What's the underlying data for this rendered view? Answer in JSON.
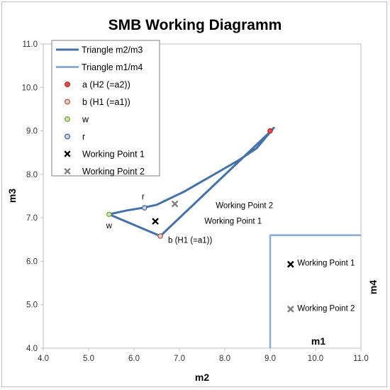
{
  "chart_data": {
    "type": "line",
    "title": "SMB Working Diagramm",
    "xlabel": "m2",
    "ylabel": "m3",
    "xlim": [
      4.0,
      11.0
    ],
    "ylim": [
      4.0,
      11.0
    ],
    "xticks": [
      "4.0",
      "5.0",
      "6.0",
      "7.0",
      "8.0",
      "9.0",
      "10.0",
      "11.0"
    ],
    "yticks": [
      "4.0",
      "5.0",
      "6.0",
      "7.0",
      "8.0",
      "9.0",
      "10.0",
      "11.0"
    ],
    "grid": false,
    "legend_position": "top-left",
    "series": [
      {
        "name": "Triangle m2/m3",
        "kind": "line",
        "color": "#4472a8",
        "x": [
          5.45,
          6.58,
          9.02,
          9.08,
          8.7,
          8.3,
          7.9,
          7.5,
          7.1,
          6.7,
          6.5,
          6.2,
          5.85,
          5.45
        ],
        "y": [
          7.08,
          6.58,
          9.0,
          9.07,
          8.6,
          8.32,
          8.08,
          7.84,
          7.6,
          7.4,
          7.3,
          7.23,
          7.17,
          7.08
        ]
      },
      {
        "name": "Triangle m1/m4",
        "kind": "line",
        "color": "#8faed0",
        "x": [
          9.0,
          9.0,
          11.0
        ],
        "y": [
          4.0,
          6.6,
          6.6
        ]
      },
      {
        "name": "a (H2 (=a2))",
        "kind": "point",
        "marker": "circle",
        "fill": "#e84b4b",
        "stroke": "#b03030",
        "x": [
          9.0
        ],
        "y": [
          9.0
        ]
      },
      {
        "name": "b (H1 (=a1))",
        "kind": "point",
        "marker": "circle",
        "fill": "#f4c7bf",
        "stroke": "#9c5a4c",
        "x": [
          6.58
        ],
        "y": [
          6.58
        ]
      },
      {
        "name": "w",
        "kind": "point",
        "marker": "circle",
        "fill": "#c9e3a6",
        "stroke": "#7aa23e",
        "x": [
          5.45
        ],
        "y": [
          7.08
        ]
      },
      {
        "name": "r",
        "kind": "point",
        "marker": "circle",
        "fill": "#c9d6ea",
        "stroke": "#4a5f86",
        "x": [
          6.23
        ],
        "y": [
          7.23
        ]
      },
      {
        "name": "Working Point 1",
        "kind": "point",
        "marker": "x",
        "color": "#000000",
        "x": [
          6.47,
          9.45
        ],
        "y": [
          6.92,
          5.93
        ]
      },
      {
        "name": "Working Point 2",
        "kind": "point",
        "marker": "x",
        "color": "#808080",
        "x": [
          6.9,
          9.45
        ],
        "y": [
          7.32,
          4.9
        ]
      }
    ],
    "annotations": [
      {
        "text": "r",
        "x": 6.2,
        "y": 7.43
      },
      {
        "text": "w",
        "x": 5.45,
        "y": 6.76
      },
      {
        "text": "b (H1 (=a1))",
        "x": 6.75,
        "y": 6.42
      },
      {
        "text": "Working Point 1",
        "x": 7.55,
        "y": 6.86
      },
      {
        "text": "Working Point 2",
        "x": 7.8,
        "y": 7.22
      },
      {
        "text": "Working Point 1",
        "x": 9.6,
        "y": 5.9
      },
      {
        "text": "Working Point 2",
        "x": 9.6,
        "y": 4.86
      }
    ],
    "secondary_axis_labels": {
      "top": "m1",
      "right": "m4"
    }
  }
}
